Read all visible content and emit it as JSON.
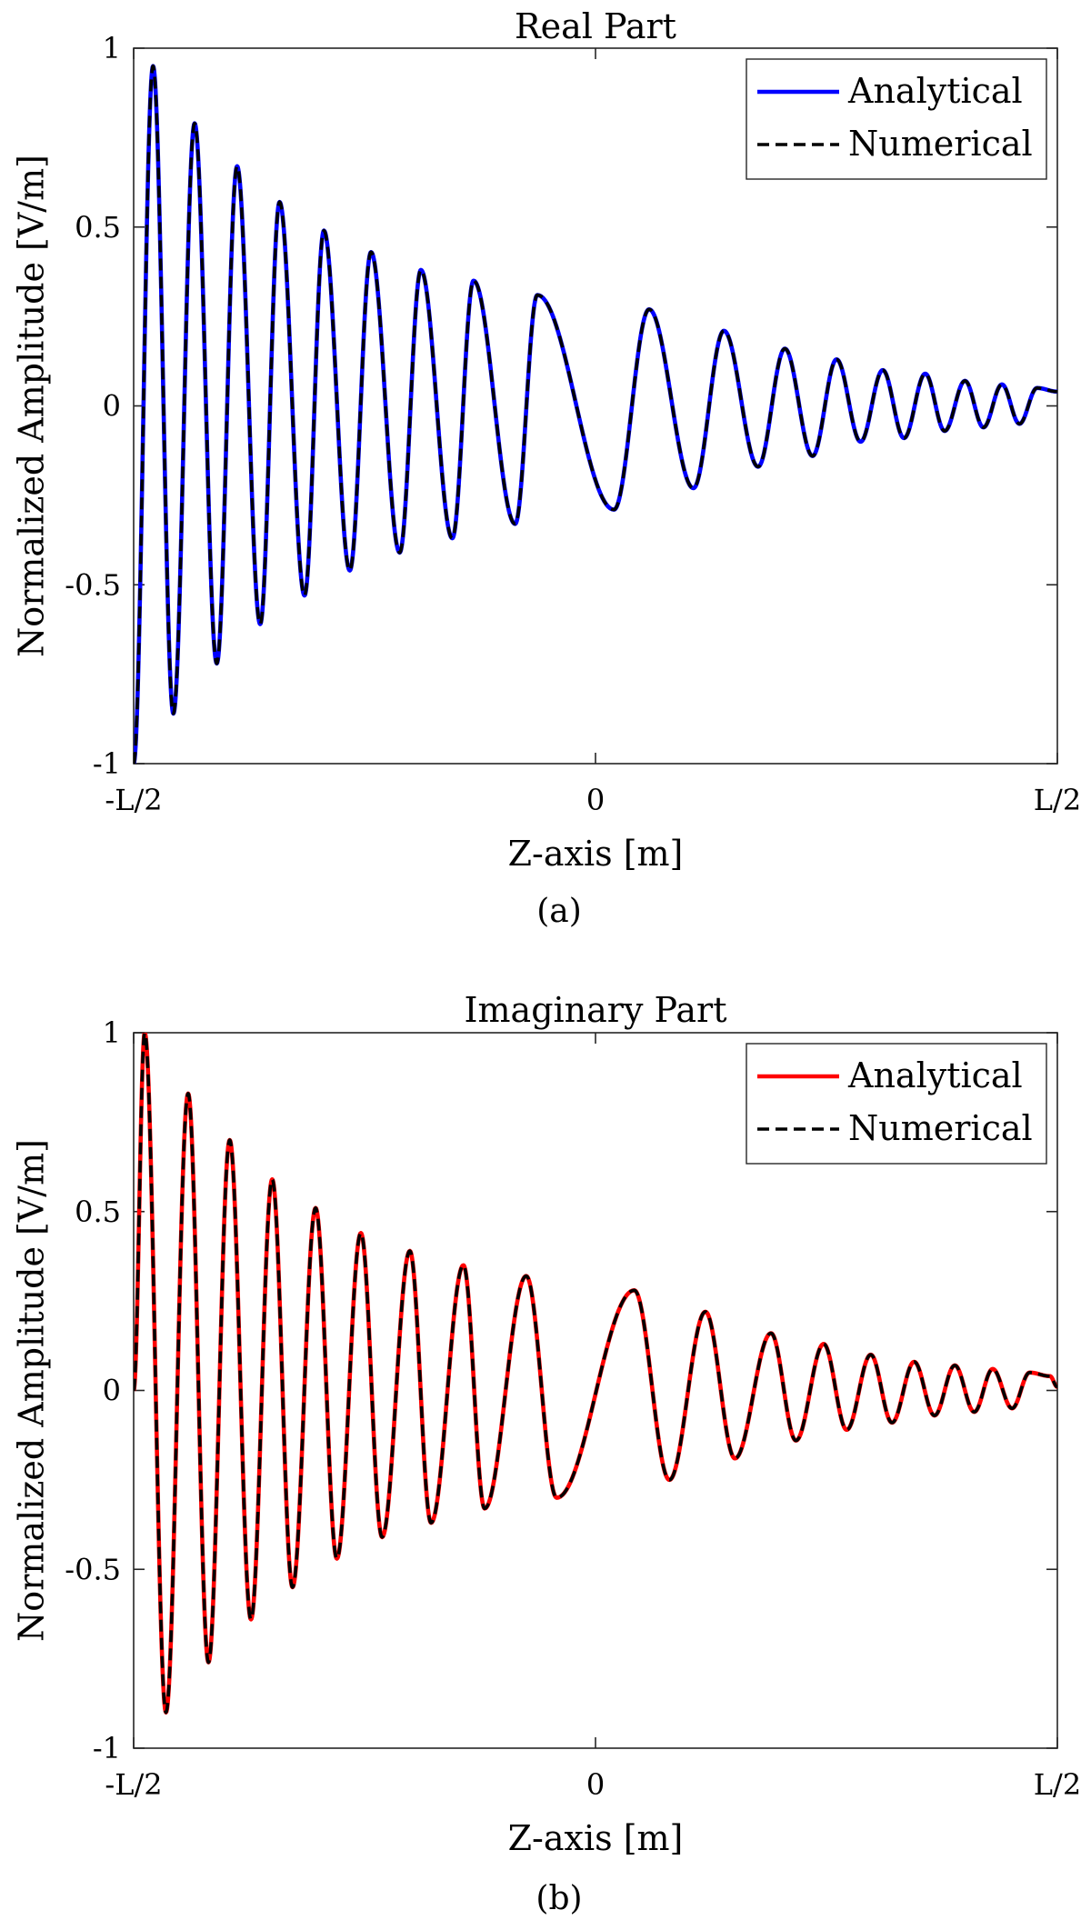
{
  "chart_data": [
    {
      "type": "line",
      "title": "Real Part",
      "xlabel": "Z-axis [m]",
      "ylabel": "Normalized Amplitude [V/m]",
      "caption": "(a)",
      "xlim": [
        -0.5,
        0.5
      ],
      "ylim": [
        -1,
        1
      ],
      "x_ticks": [
        {
          "value": -0.5,
          "label": "-L/2"
        },
        {
          "value": 0,
          "label": "0"
        },
        {
          "value": 0.5,
          "label": "L/2"
        }
      ],
      "y_ticks": [
        {
          "value": 1,
          "label": "1"
        },
        {
          "value": 0.5,
          "label": "0.5"
        },
        {
          "value": 0,
          "label": "0"
        },
        {
          "value": -0.5,
          "label": "-0.5"
        },
        {
          "value": -1,
          "label": "-1"
        }
      ],
      "legend_position": "top-right",
      "grid": false,
      "series": [
        {
          "name": "Analytical",
          "color": "#0000ff",
          "style": "solid",
          "x": [
            -0.5,
            -0.479,
            -0.457,
            -0.434,
            -0.41,
            -0.388,
            -0.363,
            -0.342,
            -0.315,
            -0.294,
            -0.266,
            -0.243,
            -0.212,
            -0.189,
            -0.155,
            -0.132,
            -0.087,
            -0.063,
            0.02,
            0.058,
            0.106,
            0.139,
            0.176,
            0.205,
            0.235,
            0.261,
            0.287,
            0.311,
            0.334,
            0.357,
            0.378,
            0.4,
            0.42,
            0.44,
            0.459,
            0.478,
            0.5
          ],
          "values": [
            -1.0,
            0.95,
            -0.86,
            0.79,
            -0.72,
            0.67,
            -0.61,
            0.57,
            -0.53,
            0.49,
            -0.46,
            0.43,
            -0.41,
            0.38,
            -0.37,
            0.35,
            -0.33,
            0.31,
            -0.29,
            0.27,
            -0.23,
            0.21,
            -0.17,
            0.16,
            -0.14,
            0.13,
            -0.1,
            0.1,
            -0.09,
            0.09,
            -0.07,
            0.07,
            -0.06,
            0.06,
            -0.05,
            0.05,
            0.04
          ]
        },
        {
          "name": "Numerical",
          "color": "#000000",
          "style": "dashed",
          "x": [
            -0.5,
            -0.479,
            -0.457,
            -0.434,
            -0.41,
            -0.388,
            -0.363,
            -0.342,
            -0.315,
            -0.294,
            -0.266,
            -0.243,
            -0.212,
            -0.189,
            -0.155,
            -0.132,
            -0.087,
            -0.063,
            0.02,
            0.058,
            0.106,
            0.139,
            0.176,
            0.205,
            0.235,
            0.261,
            0.287,
            0.311,
            0.334,
            0.357,
            0.378,
            0.4,
            0.42,
            0.44,
            0.459,
            0.478,
            0.5
          ],
          "values": [
            -1.0,
            0.95,
            -0.86,
            0.79,
            -0.72,
            0.67,
            -0.61,
            0.57,
            -0.53,
            0.49,
            -0.46,
            0.43,
            -0.41,
            0.38,
            -0.37,
            0.35,
            -0.33,
            0.31,
            -0.29,
            0.27,
            -0.23,
            0.21,
            -0.17,
            0.16,
            -0.14,
            0.13,
            -0.1,
            0.1,
            -0.09,
            0.09,
            -0.07,
            0.07,
            -0.06,
            0.06,
            -0.05,
            0.05,
            0.04
          ]
        }
      ]
    },
    {
      "type": "line",
      "title": "Imaginary Part",
      "xlabel": "Z-axis [m]",
      "ylabel": "Normalized Amplitude [V/m]",
      "caption": "(b)",
      "xlim": [
        -0.5,
        0.5
      ],
      "ylim": [
        -1,
        1
      ],
      "x_ticks": [
        {
          "value": -0.5,
          "label": "-L/2"
        },
        {
          "value": 0,
          "label": "0"
        },
        {
          "value": 0.5,
          "label": "L/2"
        }
      ],
      "y_ticks": [
        {
          "value": 1,
          "label": "1"
        },
        {
          "value": 0.5,
          "label": "0.5"
        },
        {
          "value": 0,
          "label": "0"
        },
        {
          "value": -0.5,
          "label": "-0.5"
        },
        {
          "value": -1,
          "label": "-1"
        }
      ],
      "legend_position": "top-right",
      "grid": false,
      "series": [
        {
          "name": "Analytical",
          "color": "#ff0000",
          "style": "solid",
          "x": [
            -0.5,
            -0.488,
            -0.465,
            -0.441,
            -0.419,
            -0.396,
            -0.373,
            -0.35,
            -0.328,
            -0.303,
            -0.28,
            -0.254,
            -0.231,
            -0.201,
            -0.178,
            -0.143,
            -0.12,
            -0.075,
            -0.042,
            0.042,
            0.08,
            0.119,
            0.151,
            0.19,
            0.217,
            0.247,
            0.272,
            0.298,
            0.321,
            0.345,
            0.367,
            0.389,
            0.41,
            0.43,
            0.451,
            0.47,
            0.492,
            0.5
          ],
          "values": [
            0.0,
            1.0,
            -0.9,
            0.83,
            -0.76,
            0.7,
            -0.64,
            0.59,
            -0.55,
            0.51,
            -0.47,
            0.44,
            -0.41,
            0.39,
            -0.37,
            0.35,
            -0.33,
            0.32,
            -0.3,
            0.28,
            -0.25,
            0.22,
            -0.19,
            0.16,
            -0.14,
            0.13,
            -0.11,
            0.1,
            -0.09,
            0.08,
            -0.07,
            0.07,
            -0.06,
            0.06,
            -0.05,
            0.05,
            0.04,
            0.01
          ]
        },
        {
          "name": "Numerical",
          "color": "#000000",
          "style": "dashed",
          "x": [
            -0.5,
            -0.488,
            -0.465,
            -0.441,
            -0.419,
            -0.396,
            -0.373,
            -0.35,
            -0.328,
            -0.303,
            -0.28,
            -0.254,
            -0.231,
            -0.201,
            -0.178,
            -0.143,
            -0.12,
            -0.075,
            -0.042,
            0.042,
            0.08,
            0.119,
            0.151,
            0.19,
            0.217,
            0.247,
            0.272,
            0.298,
            0.321,
            0.345,
            0.367,
            0.389,
            0.41,
            0.43,
            0.451,
            0.47,
            0.492,
            0.5
          ],
          "values": [
            0.0,
            1.0,
            -0.9,
            0.83,
            -0.76,
            0.7,
            -0.64,
            0.59,
            -0.55,
            0.51,
            -0.47,
            0.44,
            -0.41,
            0.39,
            -0.37,
            0.35,
            -0.33,
            0.32,
            -0.3,
            0.28,
            -0.25,
            0.22,
            -0.19,
            0.16,
            -0.14,
            0.13,
            -0.11,
            0.1,
            -0.09,
            0.08,
            -0.07,
            0.07,
            -0.06,
            0.06,
            -0.05,
            0.05,
            0.04,
            0.01
          ]
        }
      ]
    }
  ]
}
